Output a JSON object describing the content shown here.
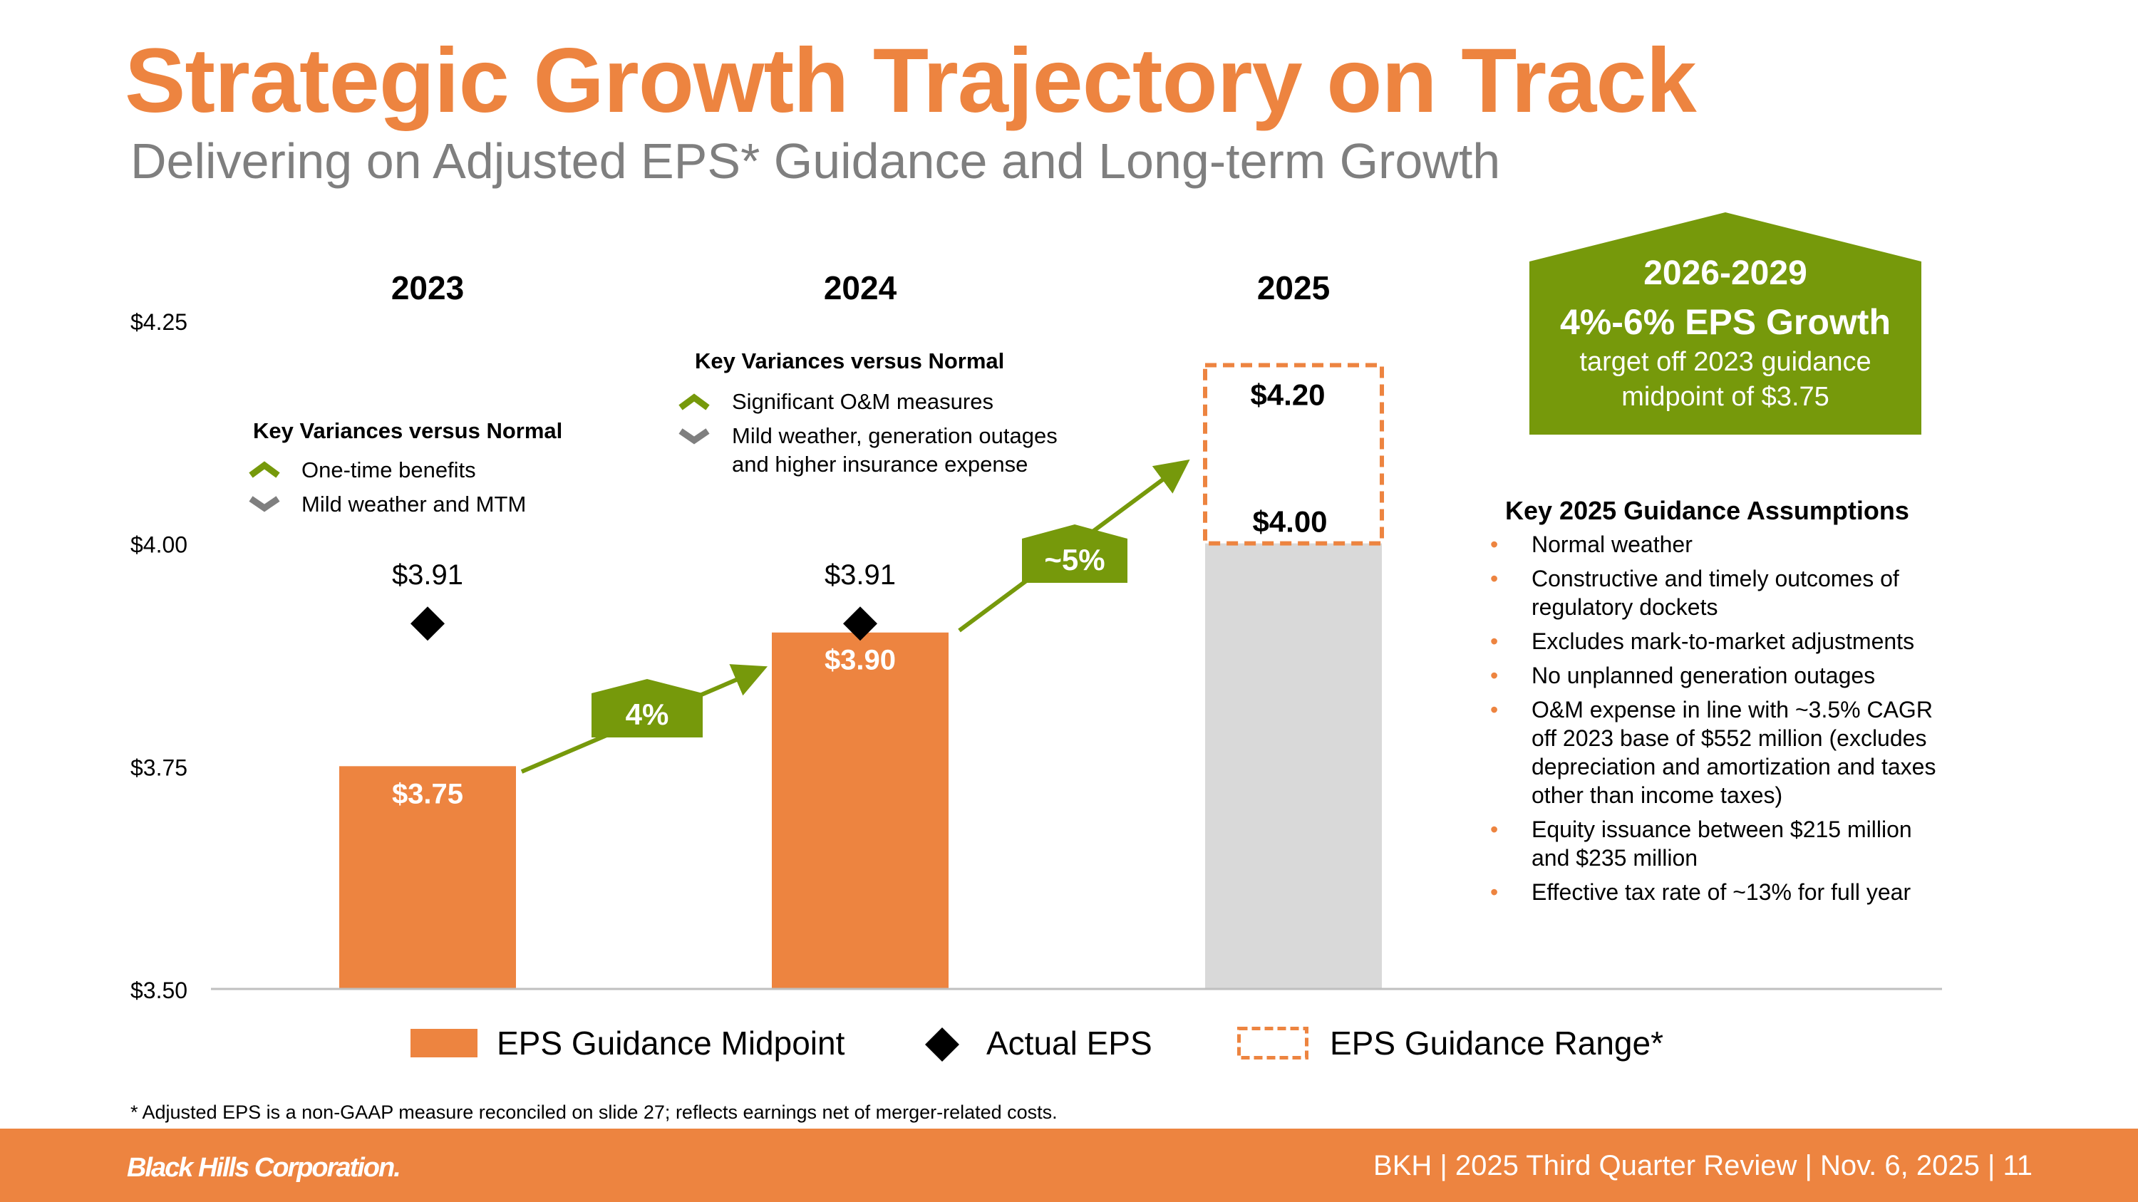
{
  "header": {
    "title": "Strategic Growth Trajectory on Track",
    "subtitle": "Delivering on Adjusted EPS* Guidance and Long-term Growth"
  },
  "colors": {
    "orange": "#ed8440",
    "green": "#76990b",
    "gray_bar": "#d9d9d9",
    "axis_text": "#000000"
  },
  "chart_data": {
    "type": "bar",
    "title": "",
    "ylim": [
      3.5,
      4.25
    ],
    "yticks": [
      3.5,
      3.75,
      4.0,
      4.25
    ],
    "ytick_labels": [
      "$3.50",
      "$3.75",
      "$4.00",
      "$4.25"
    ],
    "categories": [
      "2023",
      "2024",
      "2025"
    ],
    "series": [
      {
        "name": "EPS Guidance Midpoint",
        "values": [
          3.75,
          3.9,
          null
        ],
        "labels": [
          "$3.75",
          "$3.90",
          ""
        ]
      },
      {
        "name": "Actual EPS",
        "values": [
          3.91,
          3.91,
          null
        ],
        "labels": [
          "$3.91",
          "$3.91",
          ""
        ]
      },
      {
        "name": "EPS Guidance Range*",
        "ranges": [
          null,
          null,
          [
            4.0,
            4.2
          ]
        ],
        "labels": [
          "",
          "",
          "$4.00|$4.20"
        ]
      }
    ],
    "range_low_label": "$4.00",
    "range_high_label": "$4.20",
    "growth_labels": [
      "4%",
      "~5%"
    ],
    "legend": [
      "EPS Guidance Midpoint",
      "Actual EPS",
      "EPS Guidance Range*"
    ],
    "legend_position": "bottom"
  },
  "variances_2023": {
    "title": "Key Variances versus Normal",
    "items": [
      {
        "direction": "up",
        "text": "One-time benefits"
      },
      {
        "direction": "down",
        "text": "Mild weather and MTM"
      }
    ]
  },
  "variances_2024": {
    "title": "Key Variances versus Normal",
    "items": [
      {
        "direction": "up",
        "text": "Significant O&M measures"
      },
      {
        "direction": "down",
        "text": "Mild weather, generation outages and higher insurance expense"
      }
    ]
  },
  "growth_target": {
    "period": "2026-2029",
    "headline": "4%-6% EPS Growth",
    "line1": "target off 2023 guidance",
    "line2": "midpoint of $3.75"
  },
  "assumptions": {
    "title": "Key 2025 Guidance Assumptions",
    "items": [
      "Normal weather",
      "Constructive and timely outcomes of regulatory dockets",
      "Excludes mark-to-market adjustments",
      "No unplanned generation outages",
      "O&M expense in line with ~3.5% CAGR off 2023 base of $552 million (excludes depreciation and amortization and taxes other than income taxes)",
      "Equity issuance between $215 million and $235 million",
      "Effective tax rate of ~13% for full year"
    ]
  },
  "footnote": "*  Adjusted EPS is a non-GAAP measure reconciled on slide 27; reflects earnings net of merger-related costs.",
  "footer": {
    "brand": "Black Hills Corporation.",
    "text": "BKH  |  2025 Third Quarter Review  |  Nov. 6, 2025  |  11"
  }
}
